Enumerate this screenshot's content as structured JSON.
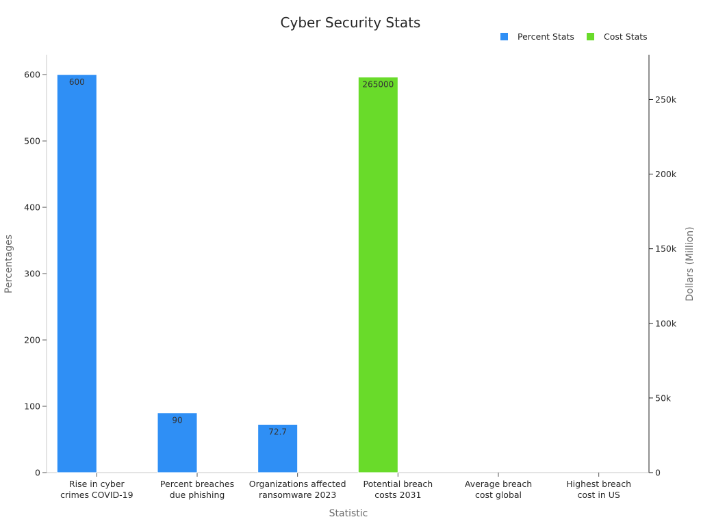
{
  "chart_data": {
    "type": "bar",
    "title": "Cyber Security Stats",
    "xlabel": "Statistic",
    "ylabel": "Percentages",
    "y2label": "Dollars (Million)",
    "categories": [
      [
        "Rise in cyber",
        "crimes COVID-19"
      ],
      [
        "Percent breaches",
        "due phishing"
      ],
      [
        "Organizations affected",
        "ransomware 2023"
      ],
      [
        "Potential breach",
        "costs 2031"
      ],
      [
        "Average breach",
        "cost global"
      ],
      [
        "Highest breach",
        "cost in US"
      ]
    ],
    "series": [
      {
        "name": "Percent Stats",
        "axis": "left",
        "color": "#2f8ff5",
        "values": [
          600,
          90,
          72.7,
          null,
          null,
          null
        ],
        "labels": [
          "600",
          "90",
          "72.7",
          "",
          "",
          ""
        ]
      },
      {
        "name": "Cost Stats",
        "axis": "right",
        "color": "#69db2a",
        "values": [
          null,
          null,
          null,
          265000,
          null,
          null
        ],
        "labels": [
          "",
          "",
          "",
          "265000",
          "",
          ""
        ]
      }
    ],
    "ylim": [
      0,
      630
    ],
    "yticks": [
      0,
      100,
      200,
      300,
      400,
      500,
      600
    ],
    "y2lim": [
      0,
      280000
    ],
    "y2ticks": [
      0,
      50000,
      100000,
      150000,
      200000,
      250000
    ],
    "y2ticklabels": [
      "0",
      "50k",
      "100k",
      "150k",
      "200k",
      "250k"
    ],
    "legend_position": "top-right",
    "grid": false
  }
}
